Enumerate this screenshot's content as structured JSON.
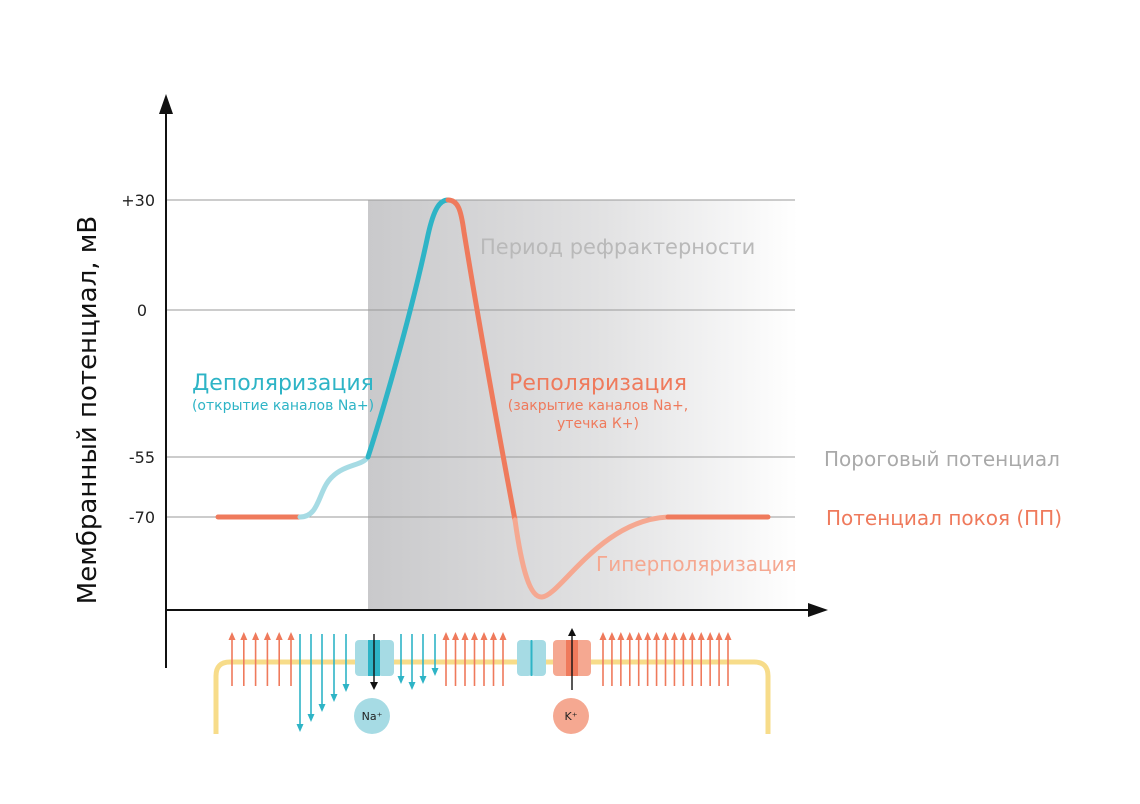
{
  "colors": {
    "teal": "#2eb4c6",
    "light_teal": "#a6dbe4",
    "orange": "#ef7a5c",
    "light_orange": "#f5a891",
    "membrane": "#f7dc8a",
    "threshold_label": "#a9a9a9",
    "refractory_label": "#b9b9b9",
    "shade": "#bdbec1"
  },
  "axis": {
    "ylabel": "Мембранный потенциал, мВ",
    "ticks": [
      "+30",
      "0",
      "-55",
      "-70"
    ]
  },
  "regions": {
    "refractory": "Период рефрактерности"
  },
  "phases": {
    "depolarization": "Деполяризация",
    "depolarization_note": "(открытие каналов Na+)",
    "repolarization": "Реполяризация",
    "repolarization_note_1": "(закрытие каналов Na+,",
    "repolarization_note_2": "утечка К+)",
    "hyperpolarization": "Гиперполяризация"
  },
  "levels": {
    "threshold": "Пороговый потенциал",
    "resting": "Потенциал покоя (ПП)"
  },
  "ions": {
    "sodium": "Na⁺",
    "potassium": "K⁺"
  },
  "chart_data": {
    "type": "line",
    "ylabel": "Мембранный потенциал, мВ",
    "y_ticks": [
      30,
      0,
      -55,
      -70
    ],
    "series": [
      {
        "points": [
          {
            "t": 0,
            "v": -70
          },
          {
            "t": 1,
            "v": -70
          },
          {
            "t": 2,
            "v": -62
          },
          {
            "t": 3,
            "v": -55
          },
          {
            "t": 4,
            "v": 30
          },
          {
            "t": 5,
            "v": 0
          },
          {
            "t": 6,
            "v": -70
          },
          {
            "t": 7,
            "v": -98
          },
          {
            "t": 8,
            "v": -78
          },
          {
            "t": 9,
            "v": -70
          },
          {
            "t": 10,
            "v": -70
          }
        ]
      }
    ],
    "reference_lines": [
      "+30",
      "0",
      "-55",
      "-70"
    ]
  }
}
